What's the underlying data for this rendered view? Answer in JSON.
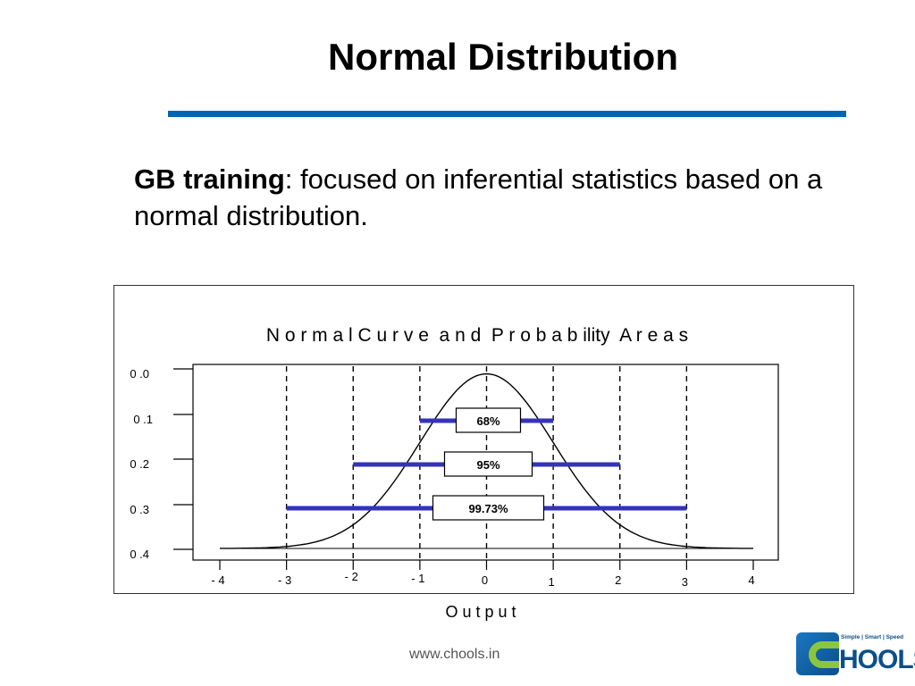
{
  "slide": {
    "title": "Normal Distribution",
    "intro_bold": "GB training",
    "intro_rest": ":  focused on inferential statistics based on a normal distribution.",
    "footer_url": "www.chools.in",
    "accent_color": "#0066b3"
  },
  "logo": {
    "tagline": "Simple | Smart | Speed",
    "wordmark": "HOOLS",
    "icon": "chools-c-logo-icon"
  },
  "chart_data": {
    "type": "line",
    "title": "N o r m a l C u r v e  a n d  P r o b a b ility  A r e a s",
    "xlabel": "O u t p u t",
    "ylabel": "",
    "xlim": [
      -4.5,
      4.5
    ],
    "ylim": [
      0,
      0.4
    ],
    "y_ticks": [
      0.0,
      0.1,
      0.2,
      0.3,
      0.4
    ],
    "y_tick_labels": [
      "0 .0",
      "0 .1",
      "0 .2",
      "0 .3",
      "0 .4"
    ],
    "x_ticks": [
      -4,
      -3,
      -2,
      -1,
      0,
      1,
      2,
      3,
      4
    ],
    "x_tick_labels": [
      "- 4",
      "-  3",
      "- 2",
      "- 1",
      "0",
      "1",
      "2",
      "3",
      "4"
    ],
    "series": [
      {
        "mean": 0,
        "sd": 1,
        "x_range": [
          -4,
          4
        ],
        "color": "#000000"
      }
    ],
    "vlines": [
      -3,
      -2,
      -1,
      0,
      1,
      2,
      3
    ],
    "intervals": [
      {
        "label": "68%",
        "from": -1,
        "to": 1,
        "y": 0.3
      },
      {
        "label": "95%",
        "from": -2,
        "to": 2,
        "y": 0.2
      },
      {
        "label": "99.73%",
        "from": -3,
        "to": 3,
        "y": 0.1
      }
    ],
    "interval_color": "#3333bb",
    "grid": false,
    "legend": "none"
  }
}
